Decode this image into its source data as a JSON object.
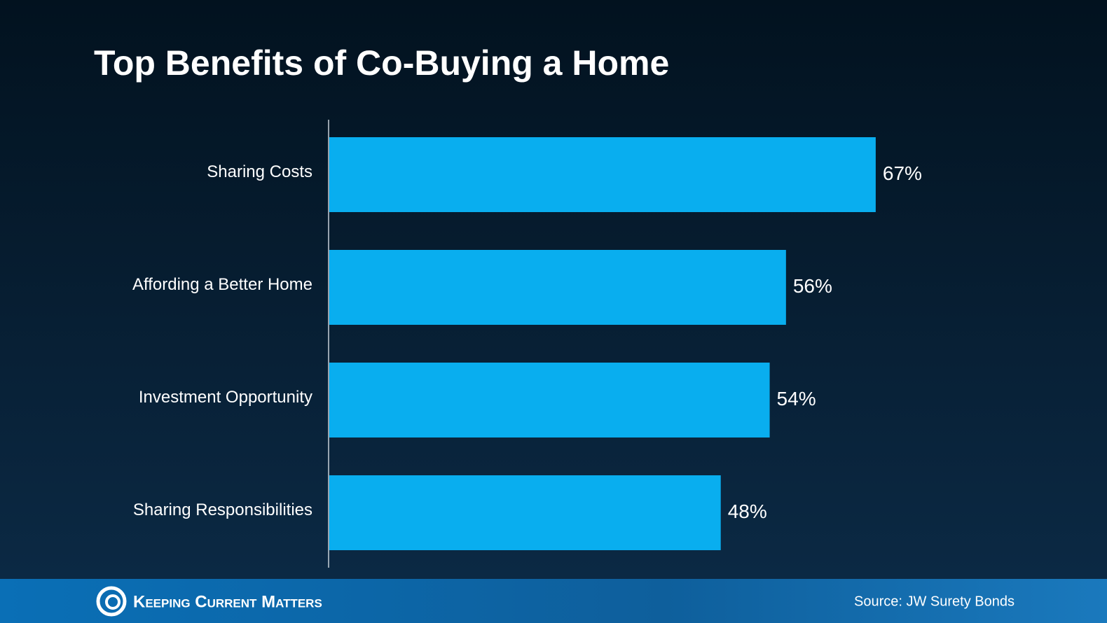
{
  "chart_data": {
    "type": "bar",
    "orientation": "horizontal",
    "title": "Top Benefits of Co-Buying a Home",
    "categories": [
      "Sharing Costs",
      "Affording a Better Home",
      "Investment Opportunity",
      "Sharing Responsibilities"
    ],
    "values": [
      67,
      56,
      54,
      48
    ],
    "value_labels": [
      "67%",
      "56%",
      "54%",
      "48%"
    ],
    "color": "#09aeef"
  },
  "footer": {
    "brand": "Keeping Current Matters",
    "source": "Source: JW Surety Bonds"
  }
}
